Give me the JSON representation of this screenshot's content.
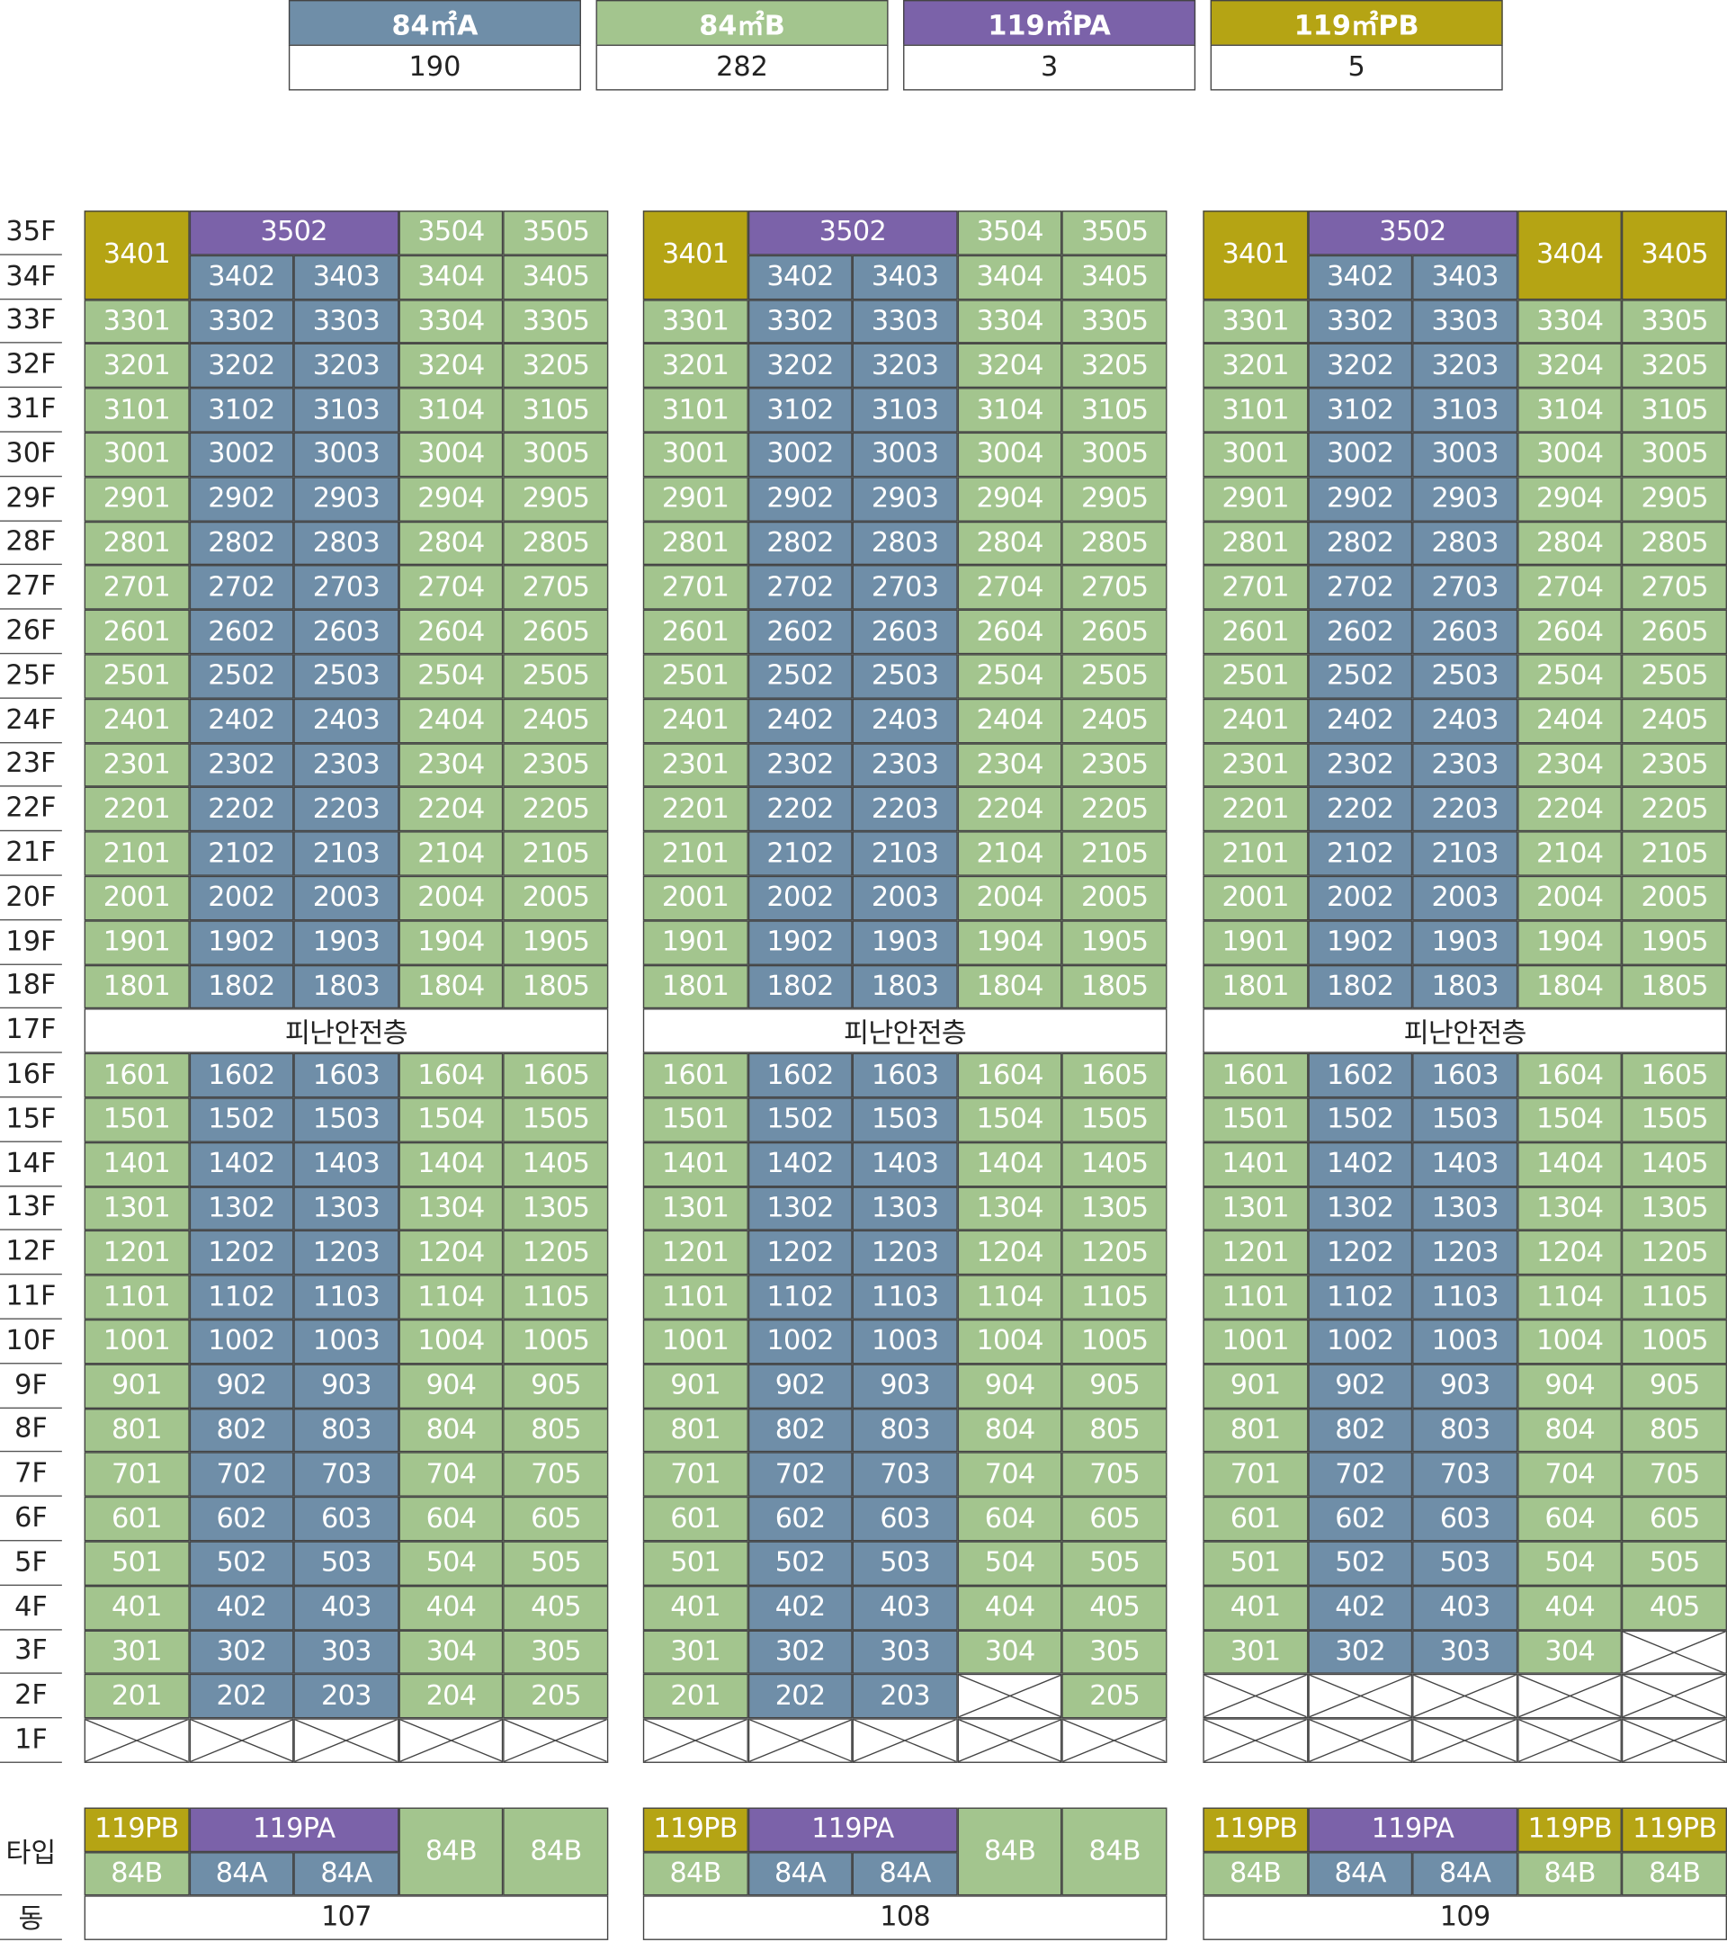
{
  "legend": [
    {
      "label": "84㎡A",
      "count": 190,
      "color": "#6f8ea8"
    },
    {
      "label": "84㎡B",
      "count": 282,
      "color": "#a3c58e"
    },
    {
      "label": "119㎡PA",
      "count": 3,
      "color": "#7b62a9"
    },
    {
      "label": "119㎡PB",
      "count": 5,
      "color": "#b5a414"
    }
  ],
  "type_colors": {
    "84A": "#6f8ea8",
    "84B": "#a3c58e",
    "119PA": "#7b62a9",
    "119PB": "#b5a414"
  },
  "floors": [
    "35F",
    "34F",
    "33F",
    "32F",
    "31F",
    "30F",
    "29F",
    "28F",
    "27F",
    "26F",
    "25F",
    "24F",
    "23F",
    "22F",
    "21F",
    "20F",
    "19F",
    "18F",
    "17F",
    "16F",
    "15F",
    "14F",
    "13F",
    "12F",
    "11F",
    "10F",
    "9F",
    "8F",
    "7F",
    "6F",
    "5F",
    "4F",
    "3F",
    "2F",
    "1F"
  ],
  "type_label": "타입",
  "building_label": "동",
  "buildings": [
    {
      "name": "107",
      "column_types": [
        "84B",
        "84A",
        "84A",
        "84B",
        "84B"
      ],
      "types": [
        {
          "upper": "119PB",
          "lower": [
            "84B"
          ]
        },
        {
          "upper": "119PA",
          "lower": [
            "84A",
            "84A"
          ]
        },
        "84B",
        "84B"
      ],
      "rows": [
        [
          {
            "unit": "3401",
            "type": "119PB"
          },
          {
            "unit": "3502",
            "type": "119PA"
          },
          "3504",
          "3505"
        ],
        [
          "3402",
          "3403",
          "3404",
          "3405"
        ],
        [
          "3301",
          "3302",
          "3303",
          "3304",
          "3305"
        ],
        [
          "3201",
          "3202",
          "3203",
          "3204",
          "3205"
        ],
        [
          "3101",
          "3102",
          "3103",
          "3104",
          "3105"
        ],
        [
          "3001",
          "3002",
          "3003",
          "3004",
          "3005"
        ],
        [
          "2901",
          "2902",
          "2903",
          "2904",
          "2905"
        ],
        [
          "2801",
          "2802",
          "2803",
          "2804",
          "2805"
        ],
        [
          "2701",
          "2702",
          "2703",
          "2704",
          "2705"
        ],
        [
          "2601",
          "2602",
          "2603",
          "2604",
          "2605"
        ],
        [
          "2501",
          "2502",
          "2503",
          "2504",
          "2505"
        ],
        [
          "2401",
          "2402",
          "2403",
          "2404",
          "2405"
        ],
        [
          "2301",
          "2302",
          "2303",
          "2304",
          "2305"
        ],
        [
          "2201",
          "2202",
          "2203",
          "2204",
          "2205"
        ],
        [
          "2101",
          "2102",
          "2103",
          "2104",
          "2105"
        ],
        [
          "2001",
          "2002",
          "2003",
          "2004",
          "2005"
        ],
        [
          "1901",
          "1902",
          "1903",
          "1904",
          "1905"
        ],
        [
          "1801",
          "1802",
          "1803",
          "1804",
          "1805"
        ],
        "피난안전층",
        [
          "1601",
          "1602",
          "1603",
          "1604",
          "1605"
        ],
        [
          "1501",
          "1502",
          "1503",
          "1504",
          "1505"
        ],
        [
          "1401",
          "1402",
          "1403",
          "1404",
          "1405"
        ],
        [
          "1301",
          "1302",
          "1303",
          "1304",
          "1305"
        ],
        [
          "1201",
          "1202",
          "1203",
          "1204",
          "1205"
        ],
        [
          "1101",
          "1102",
          "1103",
          "1104",
          "1105"
        ],
        [
          "1001",
          "1002",
          "1003",
          "1004",
          "1005"
        ],
        [
          "901",
          "902",
          "903",
          "904",
          "905"
        ],
        [
          "801",
          "802",
          "803",
          "804",
          "805"
        ],
        [
          "701",
          "702",
          "703",
          "704",
          "705"
        ],
        [
          "601",
          "602",
          "603",
          "604",
          "605"
        ],
        [
          "501",
          "502",
          "503",
          "504",
          "505"
        ],
        [
          "401",
          "402",
          "403",
          "404",
          "405"
        ],
        [
          "301",
          "302",
          "303",
          "304",
          "305"
        ],
        [
          "201",
          "202",
          "203",
          "204",
          "205"
        ],
        [
          null,
          null,
          null,
          null,
          null
        ]
      ]
    },
    {
      "name": "108",
      "column_types": [
        "84B",
        "84A",
        "84A",
        "84B",
        "84B"
      ],
      "types": [
        {
          "upper": "119PB",
          "lower": [
            "84B"
          ]
        },
        {
          "upper": "119PA",
          "lower": [
            "84A",
            "84A"
          ]
        },
        "84B",
        "84B"
      ],
      "rows": [
        [
          {
            "unit": "3401",
            "type": "119PB"
          },
          {
            "unit": "3502",
            "type": "119PA"
          },
          "3504",
          "3505"
        ],
        [
          "3402",
          "3403",
          "3404",
          "3405"
        ],
        [
          "3301",
          "3302",
          "3303",
          "3304",
          "3305"
        ],
        [
          "3201",
          "3202",
          "3203",
          "3204",
          "3205"
        ],
        [
          "3101",
          "3102",
          "3103",
          "3104",
          "3105"
        ],
        [
          "3001",
          "3002",
          "3003",
          "3004",
          "3005"
        ],
        [
          "2901",
          "2902",
          "2903",
          "2904",
          "2905"
        ],
        [
          "2801",
          "2802",
          "2803",
          "2804",
          "2805"
        ],
        [
          "2701",
          "2702",
          "2703",
          "2704",
          "2705"
        ],
        [
          "2601",
          "2602",
          "2603",
          "2604",
          "2605"
        ],
        [
          "2501",
          "2502",
          "2503",
          "2504",
          "2505"
        ],
        [
          "2401",
          "2402",
          "2403",
          "2404",
          "2405"
        ],
        [
          "2301",
          "2302",
          "2303",
          "2304",
          "2305"
        ],
        [
          "2201",
          "2202",
          "2203",
          "2204",
          "2205"
        ],
        [
          "2101",
          "2102",
          "2103",
          "2104",
          "2105"
        ],
        [
          "2001",
          "2002",
          "2003",
          "2004",
          "2005"
        ],
        [
          "1901",
          "1902",
          "1903",
          "1904",
          "1905"
        ],
        [
          "1801",
          "1802",
          "1803",
          "1804",
          "1805"
        ],
        "피난안전층",
        [
          "1601",
          "1602",
          "1603",
          "1604",
          "1605"
        ],
        [
          "1501",
          "1502",
          "1503",
          "1504",
          "1505"
        ],
        [
          "1401",
          "1402",
          "1403",
          "1404",
          "1405"
        ],
        [
          "1301",
          "1302",
          "1303",
          "1304",
          "1305"
        ],
        [
          "1201",
          "1202",
          "1203",
          "1204",
          "1205"
        ],
        [
          "1101",
          "1102",
          "1103",
          "1104",
          "1105"
        ],
        [
          "1001",
          "1002",
          "1003",
          "1004",
          "1005"
        ],
        [
          "901",
          "902",
          "903",
          "904",
          "905"
        ],
        [
          "801",
          "802",
          "803",
          "804",
          "805"
        ],
        [
          "701",
          "702",
          "703",
          "704",
          "705"
        ],
        [
          "601",
          "602",
          "603",
          "604",
          "605"
        ],
        [
          "501",
          "502",
          "503",
          "504",
          "505"
        ],
        [
          "401",
          "402",
          "403",
          "404",
          "405"
        ],
        [
          "301",
          "302",
          "303",
          "304",
          "305"
        ],
        [
          "201",
          "202",
          "203",
          null,
          "205"
        ],
        [
          null,
          null,
          null,
          null,
          null
        ]
      ]
    },
    {
      "name": "109",
      "column_types": [
        "84B",
        "84A",
        "84A",
        "84B",
        "84B"
      ],
      "types": [
        {
          "upper": "119PB",
          "lower": [
            "84B"
          ]
        },
        {
          "upper": "119PA",
          "lower": [
            "84A",
            "84A"
          ]
        },
        {
          "upper": "119PB",
          "lower": [
            "84B"
          ]
        },
        {
          "upper": "119PB",
          "lower": [
            "84B"
          ]
        }
      ],
      "rows": [
        [
          {
            "unit": "3401",
            "type": "119PB"
          },
          {
            "unit": "3502",
            "type": "119PA"
          },
          {
            "unit": "3404",
            "type": "119PB"
          },
          {
            "unit": "3405",
            "type": "119PB"
          }
        ],
        [
          "3402",
          "3403"
        ],
        [
          "3301",
          "3302",
          "3303",
          "3304",
          "3305"
        ],
        [
          "3201",
          "3202",
          "3203",
          "3204",
          "3205"
        ],
        [
          "3101",
          "3102",
          "3103",
          "3104",
          "3105"
        ],
        [
          "3001",
          "3002",
          "3003",
          "3004",
          "3005"
        ],
        [
          "2901",
          "2902",
          "2903",
          "2904",
          "2905"
        ],
        [
          "2801",
          "2802",
          "2803",
          "2804",
          "2805"
        ],
        [
          "2701",
          "2702",
          "2703",
          "2704",
          "2705"
        ],
        [
          "2601",
          "2602",
          "2603",
          "2604",
          "2605"
        ],
        [
          "2501",
          "2502",
          "2503",
          "2504",
          "2505"
        ],
        [
          "2401",
          "2402",
          "2403",
          "2404",
          "2405"
        ],
        [
          "2301",
          "2302",
          "2303",
          "2304",
          "2305"
        ],
        [
          "2201",
          "2202",
          "2203",
          "2204",
          "2205"
        ],
        [
          "2101",
          "2102",
          "2103",
          "2104",
          "2105"
        ],
        [
          "2001",
          "2002",
          "2003",
          "2004",
          "2005"
        ],
        [
          "1901",
          "1902",
          "1903",
          "1904",
          "1905"
        ],
        [
          "1801",
          "1802",
          "1803",
          "1804",
          "1805"
        ],
        "피난안전층",
        [
          "1601",
          "1602",
          "1603",
          "1604",
          "1605"
        ],
        [
          "1501",
          "1502",
          "1503",
          "1504",
          "1505"
        ],
        [
          "1401",
          "1402",
          "1403",
          "1404",
          "1405"
        ],
        [
          "1301",
          "1302",
          "1303",
          "1304",
          "1305"
        ],
        [
          "1201",
          "1202",
          "1203",
          "1204",
          "1205"
        ],
        [
          "1101",
          "1102",
          "1103",
          "1104",
          "1105"
        ],
        [
          "1001",
          "1002",
          "1003",
          "1004",
          "1005"
        ],
        [
          "901",
          "902",
          "903",
          "904",
          "905"
        ],
        [
          "801",
          "802",
          "803",
          "804",
          "805"
        ],
        [
          "701",
          "702",
          "703",
          "704",
          "705"
        ],
        [
          "601",
          "602",
          "603",
          "604",
          "605"
        ],
        [
          "501",
          "502",
          "503",
          "504",
          "505"
        ],
        [
          "401",
          "402",
          "403",
          "404",
          "405"
        ],
        [
          "301",
          "302",
          "303",
          "304",
          null
        ],
        [
          null,
          null,
          null,
          null,
          null
        ],
        [
          null,
          null,
          null,
          null,
          null
        ]
      ]
    }
  ]
}
